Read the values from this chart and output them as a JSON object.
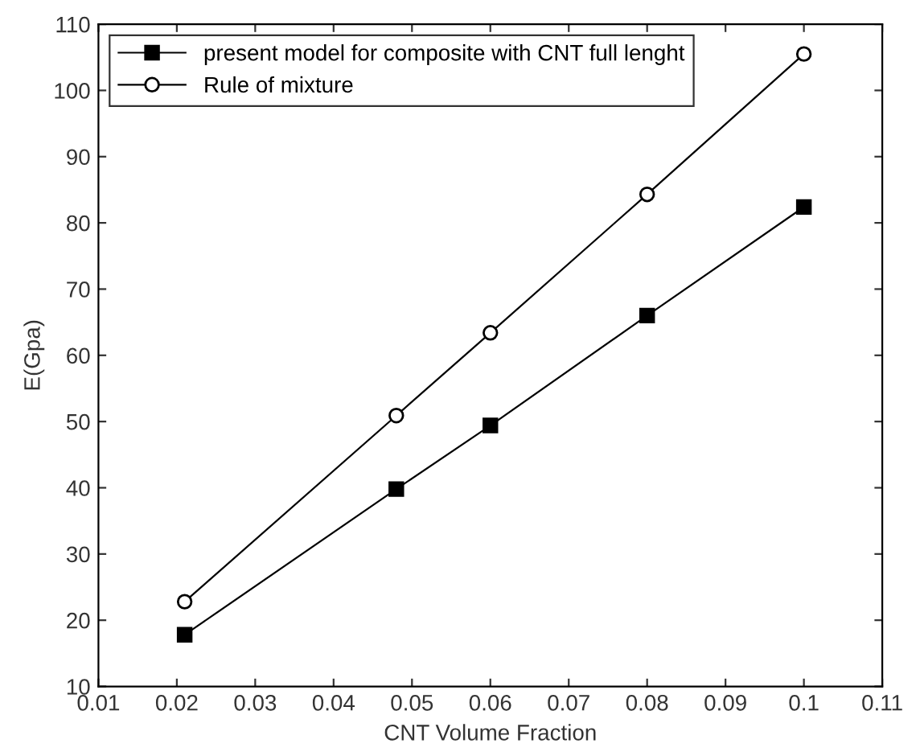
{
  "chart_data": {
    "type": "line",
    "xlabel": "CNT Volume Fraction",
    "ylabel": "E(Gpa)",
    "x": [
      0.021,
      0.048,
      0.06,
      0.08,
      0.1
    ],
    "series": [
      {
        "name": "present model for composite with CNT full lenght",
        "color": "#000000",
        "marker": "square",
        "values": [
          17.8,
          39.8,
          49.4,
          66.0,
          82.4
        ]
      },
      {
        "name": "Rule of mixture",
        "color": "#000000",
        "marker": "circle",
        "values": [
          22.8,
          50.9,
          63.4,
          84.3,
          105.5
        ]
      }
    ],
    "xlim": [
      0.01,
      0.11
    ],
    "xticks": [
      0.01,
      0.02,
      0.03,
      0.04,
      0.05,
      0.06,
      0.07,
      0.08,
      0.09,
      0.1,
      0.11
    ],
    "ylim": [
      10,
      110
    ],
    "yticks": [
      10,
      20,
      30,
      40,
      50,
      60,
      70,
      80,
      90,
      100,
      110
    ],
    "grid": false,
    "legend": "top left",
    "line_style": "solid"
  }
}
